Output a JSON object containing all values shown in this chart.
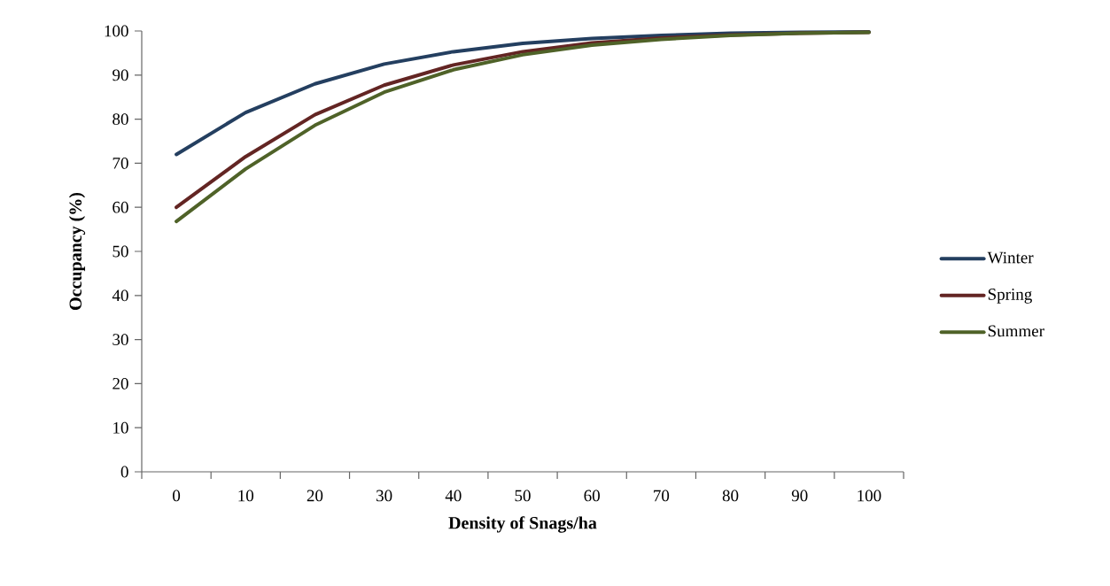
{
  "chart_data": {
    "type": "line",
    "xlabel": "Density of  Snags/ha",
    "ylabel": "Occupancy (%)",
    "categories": [
      "0",
      "10",
      "20",
      "30",
      "40",
      "50",
      "60",
      "70",
      "80",
      "90",
      "100"
    ],
    "series": [
      {
        "name": "Winter",
        "color": "#243f60",
        "values": [
          72,
          81.5,
          88,
          92.5,
          95.3,
          97.2,
          98.3,
          99,
          99.5,
          99.7,
          99.8
        ]
      },
      {
        "name": "Spring",
        "color": "#632523",
        "values": [
          60,
          71.5,
          81,
          87.7,
          92.3,
          95.3,
          97.3,
          98.4,
          99.1,
          99.5,
          99.7
        ]
      },
      {
        "name": "Summer",
        "color": "#4f6228",
        "values": [
          56.8,
          68.7,
          78.6,
          86.1,
          91.2,
          94.6,
          96.8,
          98.1,
          99,
          99.5,
          99.7
        ]
      }
    ],
    "ylim": [
      0,
      100
    ],
    "yticks": [
      0,
      10,
      20,
      30,
      40,
      50,
      60,
      70,
      80,
      90,
      100
    ],
    "grid": false,
    "legend": "right",
    "marker": "none",
    "line_style": "solid"
  }
}
